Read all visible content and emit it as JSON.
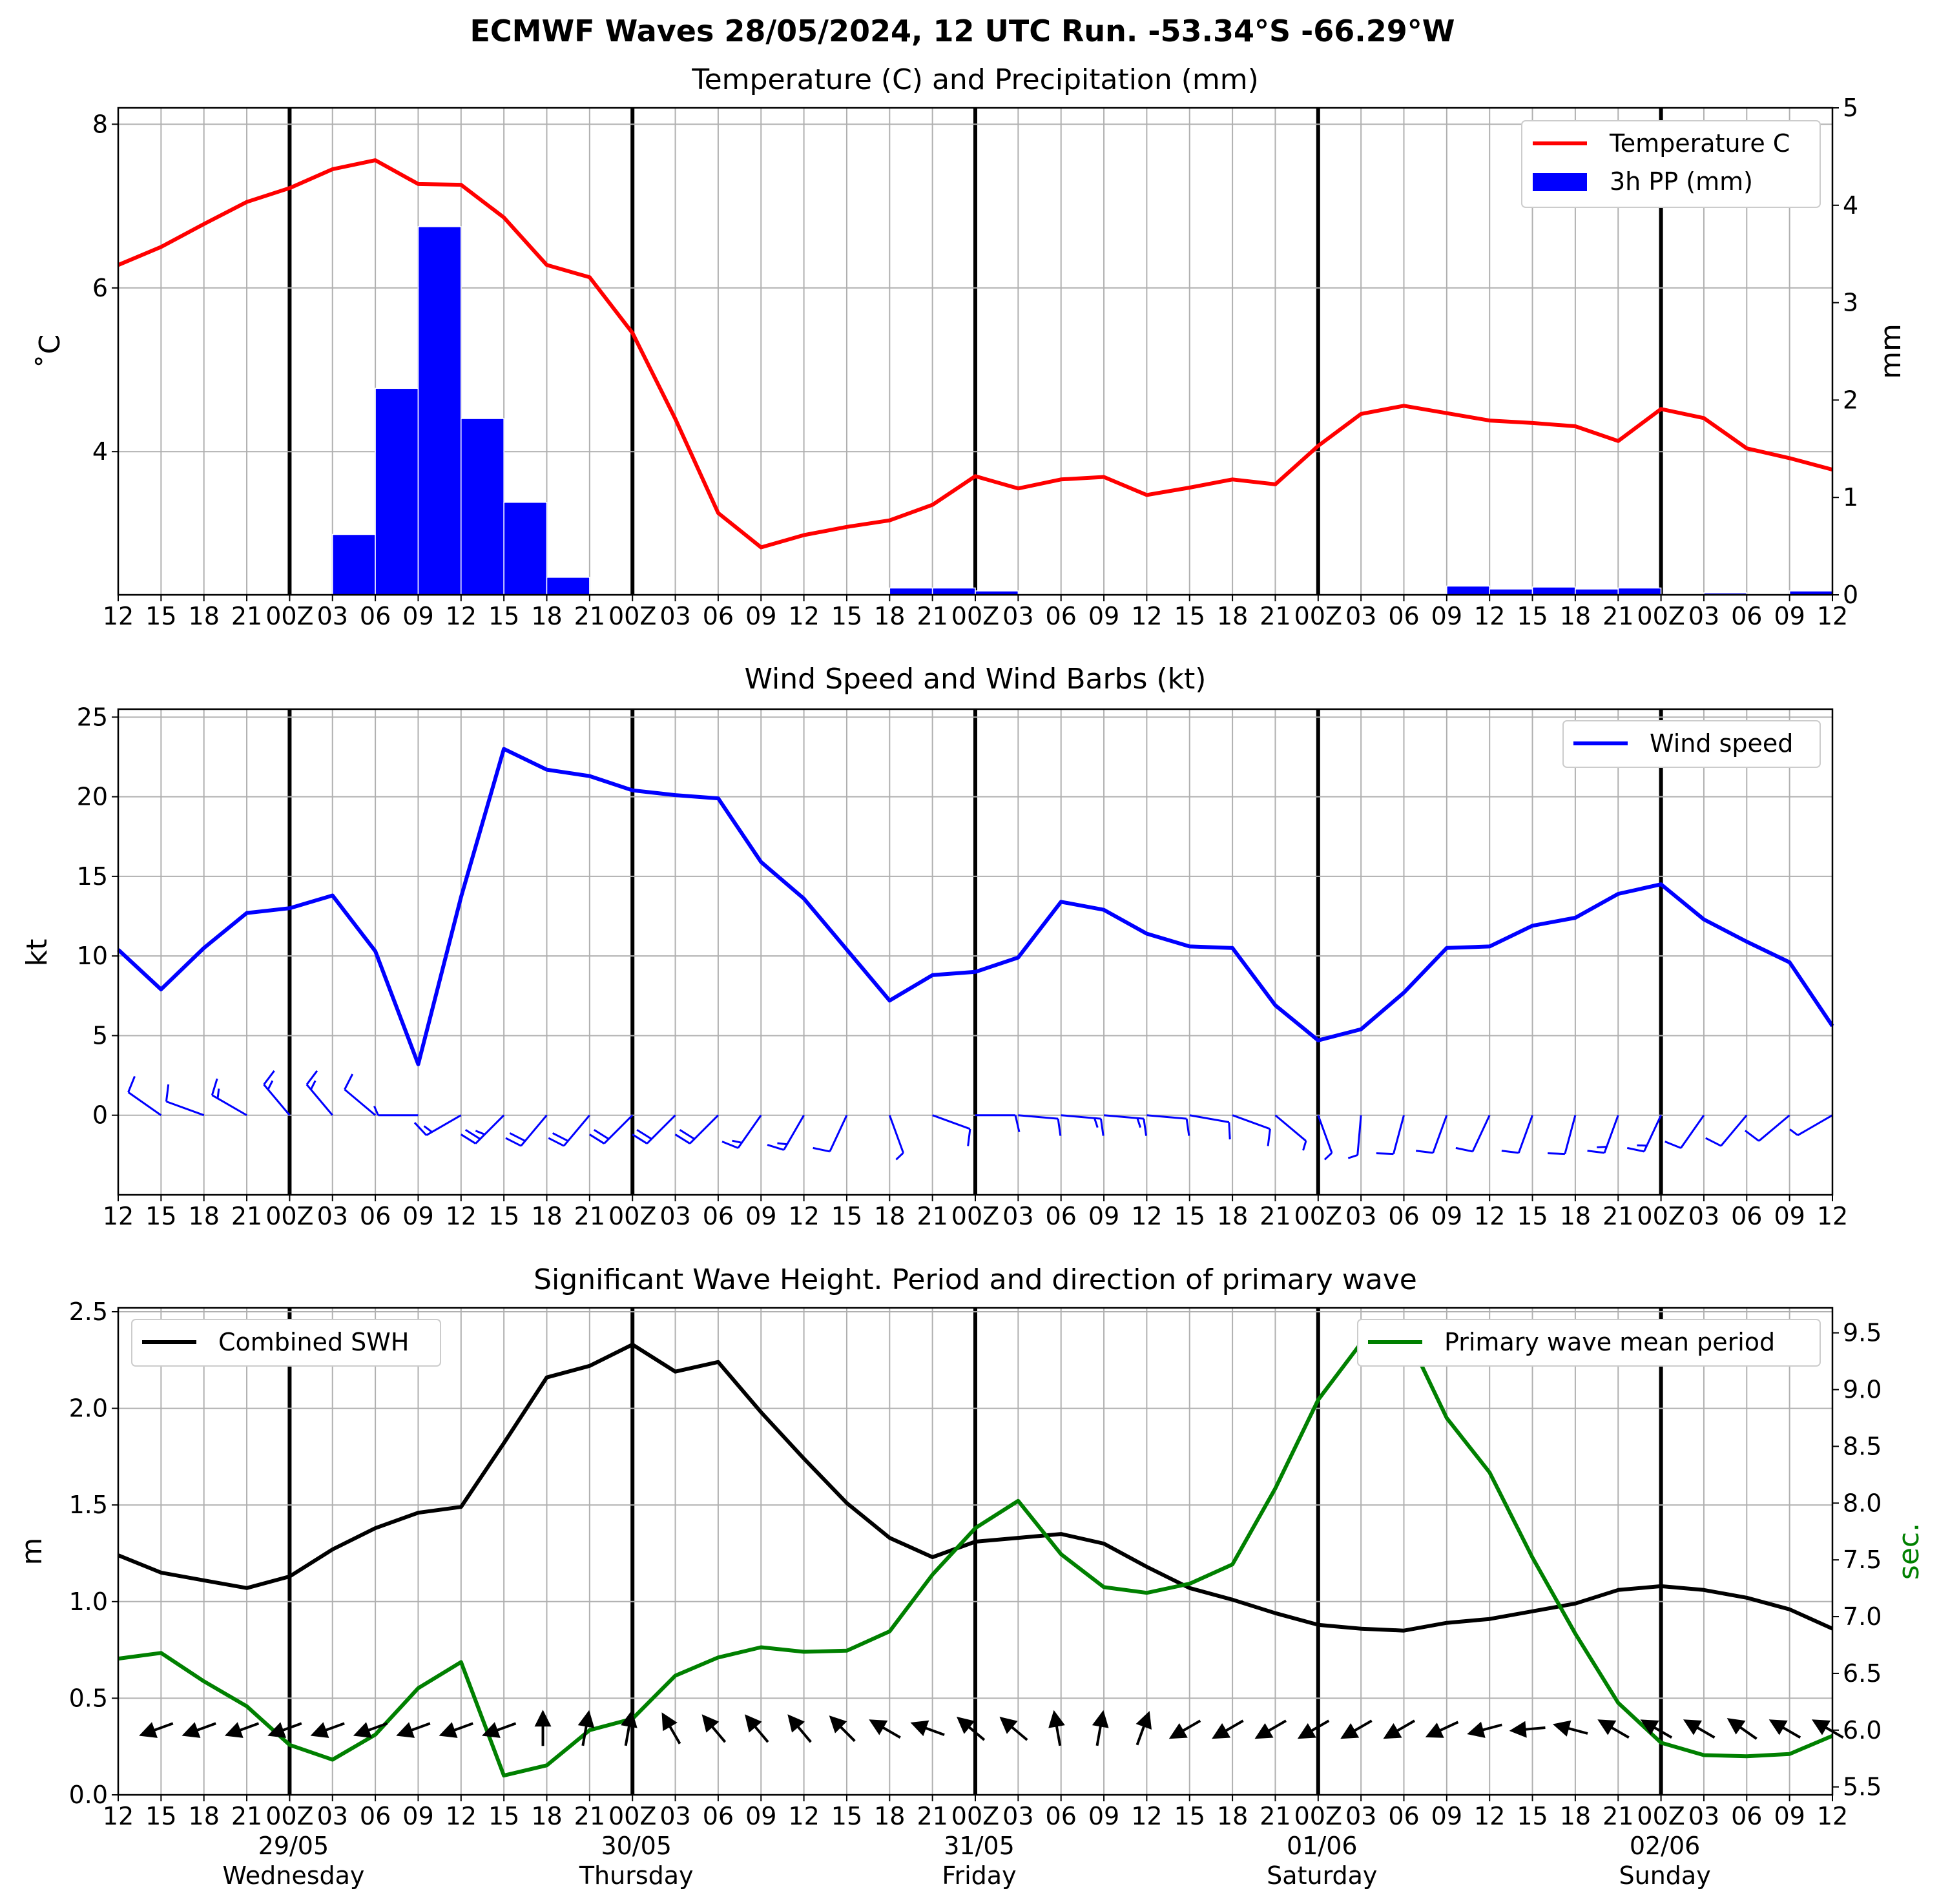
{
  "suptitle": "ECMWF Waves 28/05/2024, 12 UTC Run. -53.34°S -66.29°W",
  "colors": {
    "temperature": "#ff0000",
    "precipitation": "#0000ff",
    "wind": "#0000ff",
    "swh": "#000000",
    "period": "#008000",
    "grid": "#b0b0b0"
  },
  "x_tick_labels": [
    "12",
    "15",
    "18",
    "21",
    "00Z",
    "03",
    "06",
    "09",
    "12",
    "15",
    "18",
    "21",
    "00Z",
    "03",
    "06",
    "09",
    "12",
    "15",
    "18",
    "21",
    "00Z",
    "03",
    "06",
    "09",
    "12",
    "15",
    "18",
    "21",
    "00Z",
    "03",
    "06",
    "09",
    "12",
    "15",
    "18",
    "21",
    "00Z",
    "03",
    "06",
    "09",
    "12"
  ],
  "day_labels": [
    {
      "date": "29/05",
      "day": "Wednesday"
    },
    {
      "date": "30/05",
      "day": "Thursday"
    },
    {
      "date": "31/05",
      "day": "Friday"
    },
    {
      "date": "01/06",
      "day": "Saturday"
    },
    {
      "date": "02/06",
      "day": "Sunday"
    }
  ],
  "chart_data": [
    {
      "type": "line",
      "title": "Temperature (C) and Precipitation (mm)",
      "ylabel": "$^\\circ$C",
      "ylabel_display": "˚C",
      "y2label": "mm",
      "x_unit": "hours since 28/05 12 UTC (3 h steps)",
      "ylim": [
        2.25,
        8.2
      ],
      "yticks": [
        4,
        6,
        8
      ],
      "y2lim": [
        0,
        5
      ],
      "y2ticks": [
        0,
        1,
        2,
        3,
        4,
        5
      ],
      "grid": true,
      "legend": "top-right",
      "legend_labels": {
        "temperature": "Temperature C",
        "precipitation": "3h PP (mm)"
      },
      "series": [
        {
          "name": "Temperature C",
          "kind": "line",
          "axis": "left",
          "values": [
            6.28,
            6.5,
            6.78,
            7.05,
            7.22,
            7.45,
            7.56,
            7.27,
            7.26,
            6.86,
            6.28,
            6.13,
            5.45,
            4.4,
            3.25,
            2.83,
            2.98,
            3.08,
            3.16,
            3.35,
            3.7,
            3.55,
            3.66,
            3.69,
            3.47,
            3.56,
            3.66,
            3.6,
            4.07,
            4.46,
            4.56,
            4.47,
            4.38,
            4.35,
            4.31,
            4.13,
            4.52,
            4.41,
            4.04,
            3.92,
            3.78
          ]
        },
        {
          "name": "3h PP (mm)",
          "kind": "bar",
          "axis": "right",
          "values": [
            0,
            0,
            0,
            0,
            0,
            0,
            0.62,
            2.12,
            3.78,
            1.81,
            0.95,
            0.18,
            0,
            0,
            0,
            0,
            0,
            0,
            0,
            0.07,
            0.07,
            0.04,
            0,
            0,
            0,
            0,
            0,
            0,
            0,
            0,
            0,
            0,
            0.09,
            0.06,
            0.08,
            0.06,
            0.07,
            0,
            0.02,
            0,
            0.04
          ]
        }
      ]
    },
    {
      "type": "line",
      "title": "Wind Speed and Wind Barbs (kt)",
      "ylabel": "kt",
      "ylim": [
        -5,
        25.5
      ],
      "yticks": [
        0,
        5,
        10,
        15,
        20,
        25
      ],
      "grid": true,
      "legend": "top-right",
      "series": [
        {
          "name": "Wind speed",
          "kind": "line",
          "values": [
            10.4,
            7.9,
            10.5,
            12.7,
            13.0,
            13.8,
            10.3,
            3.2,
            13.7,
            23.0,
            21.7,
            21.3,
            20.4,
            20.1,
            19.9,
            15.9,
            13.6,
            10.4,
            7.2,
            8.8,
            9.0,
            9.9,
            13.4,
            12.9,
            11.4,
            10.6,
            10.5,
            6.9,
            4.7,
            5.4,
            7.7,
            10.5,
            10.6,
            11.9,
            12.4,
            13.9,
            14.5,
            12.3,
            10.9,
            9.6,
            5.6
          ]
        }
      ],
      "barbs": {
        "y_position": 0,
        "direction_from_deg": [
          315,
          305,
          290,
          300,
          320,
          320,
          310,
          270,
          240,
          225,
          220,
          220,
          225,
          225,
          225,
          215,
          210,
          205,
          160,
          110,
          90,
          95,
          95,
          95,
          95,
          100,
          110,
          130,
          160,
          185,
          195,
          200,
          205,
          200,
          195,
          200,
          205,
          215,
          220,
          230,
          240
        ]
      }
    },
    {
      "type": "line",
      "title": "Significant Wave Height. Period and direction of primary wave",
      "ylabel": "m",
      "y2label": "sec.",
      "ylim": [
        0,
        2.52
      ],
      "yticks": [
        0.0,
        0.5,
        1.0,
        1.5,
        2.0,
        2.5
      ],
      "y2lim": [
        5.43,
        9.72
      ],
      "y2ticks": [
        5.5,
        6.0,
        6.5,
        7.0,
        7.5,
        8.0,
        8.5,
        9.0,
        9.5
      ],
      "grid": true,
      "legend": [
        "top-left",
        "top-right"
      ],
      "series": [
        {
          "name": "Combined SWH",
          "kind": "line",
          "axis": "left",
          "values": [
            1.24,
            1.15,
            1.11,
            1.07,
            1.13,
            1.27,
            1.38,
            1.46,
            1.49,
            1.82,
            2.16,
            2.22,
            2.33,
            2.19,
            2.24,
            1.98,
            1.74,
            1.51,
            1.33,
            1.23,
            1.31,
            1.33,
            1.35,
            1.3,
            1.18,
            1.07,
            1.01,
            0.94,
            0.88,
            0.86,
            0.85,
            0.89,
            0.91,
            0.95,
            0.99,
            1.06,
            1.08,
            1.06,
            1.02,
            0.96,
            0.86
          ]
        },
        {
          "name": "Primary wave mean period",
          "kind": "line",
          "axis": "right",
          "values": [
            6.63,
            6.68,
            6.43,
            6.21,
            5.87,
            5.74,
            5.96,
            6.37,
            6.6,
            5.6,
            5.69,
            6.0,
            6.1,
            6.48,
            6.64,
            6.73,
            6.69,
            6.7,
            6.87,
            7.37,
            7.78,
            8.02,
            7.55,
            7.26,
            7.21,
            7.29,
            7.46,
            8.13,
            8.91,
            9.41,
            9.54,
            8.75,
            8.27,
            7.52,
            6.85,
            6.24,
            5.89,
            5.78,
            5.77,
            5.79,
            5.95
          ]
        }
      ],
      "arrows": {
        "y_position": 0.34,
        "direction_to_deg": [
          250,
          250,
          250,
          250,
          250,
          250,
          250,
          250,
          250,
          250,
          0,
          10,
          10,
          330,
          320,
          320,
          320,
          315,
          300,
          290,
          310,
          310,
          350,
          10,
          20,
          240,
          240,
          240,
          240,
          240,
          240,
          245,
          255,
          265,
          285,
          300,
          300,
          300,
          305,
          300,
          300
        ]
      }
    }
  ]
}
